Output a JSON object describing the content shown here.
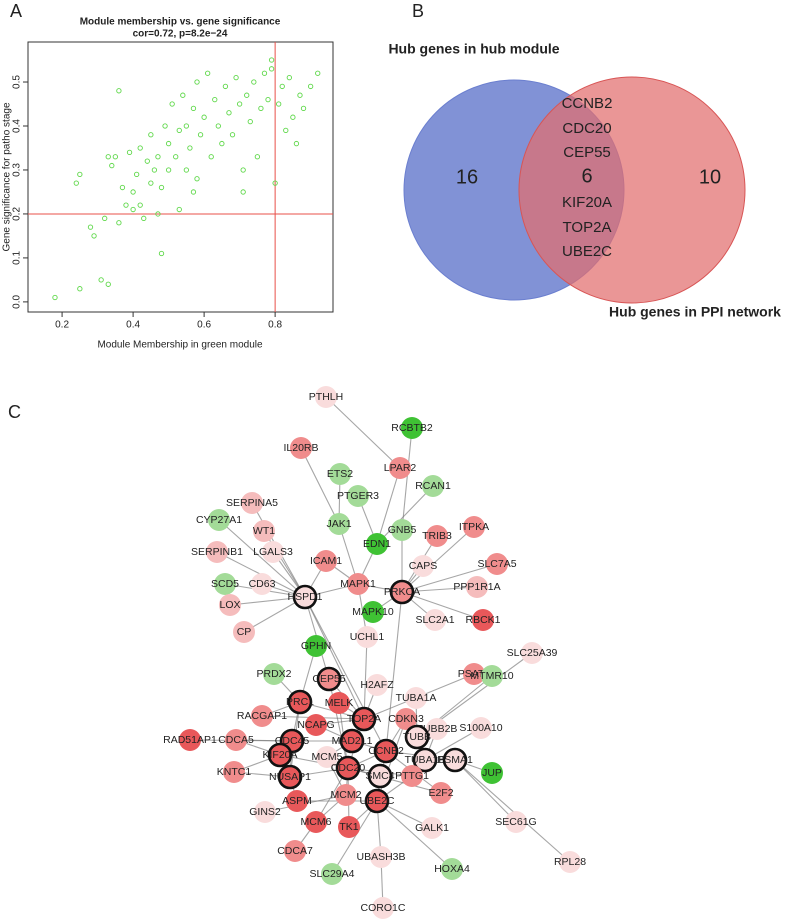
{
  "panel_labels": [
    "A",
    "B",
    "C"
  ],
  "chart_data": {
    "type": "scatter",
    "title": "Module membership vs. gene significance",
    "subtitle": "cor=0.72, p=8.2e−24",
    "x_label": "Module Membership in green module",
    "y_label": "Gene significance for patho stage",
    "color": "#5fd84a",
    "x": [
      0.18,
      0.25,
      0.24,
      0.25,
      0.31,
      0.33,
      0.28,
      0.29,
      0.32,
      0.33,
      0.34,
      0.36,
      0.35,
      0.36,
      0.37,
      0.38,
      0.39,
      0.4,
      0.4,
      0.41,
      0.42,
      0.42,
      0.43,
      0.44,
      0.45,
      0.45,
      0.46,
      0.47,
      0.48,
      0.48,
      0.49,
      0.5,
      0.5,
      0.51,
      0.52,
      0.53,
      0.53,
      0.54,
      0.55,
      0.55,
      0.56,
      0.57,
      0.58,
      0.58,
      0.59,
      0.6,
      0.61,
      0.62,
      0.63,
      0.64,
      0.65,
      0.66,
      0.67,
      0.68,
      0.69,
      0.7,
      0.71,
      0.72,
      0.73,
      0.74,
      0.75,
      0.76,
      0.77,
      0.78,
      0.79,
      0.8,
      0.81,
      0.82,
      0.83,
      0.84,
      0.85,
      0.86,
      0.87,
      0.88,
      0.9,
      0.92,
      0.79,
      0.71,
      0.57,
      0.47
    ],
    "y": [
      0.01,
      0.03,
      0.27,
      0.29,
      0.05,
      0.04,
      0.17,
      0.15,
      0.19,
      0.33,
      0.31,
      0.48,
      0.33,
      0.18,
      0.26,
      0.22,
      0.34,
      0.25,
      0.21,
      0.29,
      0.35,
      0.22,
      0.19,
      0.32,
      0.38,
      0.27,
      0.3,
      0.33,
      0.11,
      0.26,
      0.4,
      0.36,
      0.3,
      0.45,
      0.33,
      0.21,
      0.39,
      0.47,
      0.3,
      0.4,
      0.35,
      0.44,
      0.28,
      0.5,
      0.38,
      0.42,
      0.52,
      0.33,
      0.46,
      0.4,
      0.36,
      0.49,
      0.43,
      0.38,
      0.51,
      0.45,
      0.3,
      0.47,
      0.41,
      0.5,
      0.33,
      0.44,
      0.52,
      0.46,
      0.53,
      0.27,
      0.45,
      0.49,
      0.39,
      0.51,
      0.42,
      0.36,
      0.47,
      0.44,
      0.49,
      0.52,
      0.55,
      0.25,
      0.25,
      0.2
    ],
    "xlim": [
      0.104,
      0.963
    ],
    "ylim": [
      -0.023,
      0.591
    ],
    "xticks": [
      0.2,
      0.4,
      0.6,
      0.8
    ],
    "yticks": [
      {
        "value": 0,
        "label": "0.0"
      },
      0.1,
      0.2,
      0.3,
      0.4,
      0.5
    ],
    "threshold_lines": {
      "x": 0.8,
      "y": 0.2,
      "color": "#e8504a"
    }
  },
  "venn": {
    "sets": [
      {
        "name": "Hub genes in hub module",
        "color": "#6b7fcf",
        "only": 16
      },
      {
        "name": "Hub genes in PPI network",
        "color": "#e26d6d",
        "only": 10
      }
    ],
    "intersection": {
      "count": 6,
      "genes": [
        "CCNB2",
        "CDC20",
        "CEP55",
        "KIF20A",
        "TOP2A",
        "UBE2C"
      ]
    }
  },
  "network": {
    "palette": {
      "red": "#e8585a",
      "pink": "#f08c8c",
      "lightpink": "#f5bcbc",
      "light": "#f9dcdc",
      "green": "#3fc234",
      "lightgreen": "#a3db98"
    },
    "nodes": [
      {
        "label": "PTHLH",
        "fill": "light"
      },
      {
        "label": "RCBTB2",
        "fill": "green"
      },
      {
        "label": "IL20RB",
        "fill": "pink"
      },
      {
        "label": "ETS2",
        "fill": "lightgreen"
      },
      {
        "label": "LPAR2",
        "fill": "pink"
      },
      {
        "label": "PTGER3",
        "fill": "lightgreen"
      },
      {
        "label": "RCAN1",
        "fill": "lightgreen"
      },
      {
        "label": "SERPINA5",
        "fill": "lightpink"
      },
      {
        "label": "CYP27A1",
        "fill": "lightgreen"
      },
      {
        "label": "WT1",
        "fill": "lightpink"
      },
      {
        "label": "JAK1",
        "fill": "lightgreen"
      },
      {
        "label": "GNB5",
        "fill": "lightgreen"
      },
      {
        "label": "TRIB3",
        "fill": "pink"
      },
      {
        "label": "ITPKA",
        "fill": "pink"
      },
      {
        "label": "EDN1",
        "fill": "green"
      },
      {
        "label": "SERPINB1",
        "fill": "lightpink"
      },
      {
        "label": "LGALS3",
        "fill": "light"
      },
      {
        "label": "ICAM1",
        "fill": "pink"
      },
      {
        "label": "SLC7A5",
        "fill": "pink"
      },
      {
        "label": "CAPS",
        "fill": "light"
      },
      {
        "label": "SCD5",
        "fill": "lightgreen"
      },
      {
        "label": "CD63",
        "fill": "light"
      },
      {
        "label": "MAPK1",
        "fill": "pink"
      },
      {
        "label": "PRKCA",
        "fill": "pink",
        "hub": true
      },
      {
        "label": "PPP1R1A",
        "fill": "lightpink"
      },
      {
        "label": "LOX",
        "fill": "lightpink"
      },
      {
        "label": "HSPD1",
        "fill": "light",
        "hub": true
      },
      {
        "label": "MAPK10",
        "fill": "green"
      },
      {
        "label": "SLC2A1",
        "fill": "light"
      },
      {
        "label": "RBCK1",
        "fill": "red"
      },
      {
        "label": "CP",
        "fill": "lightpink"
      },
      {
        "label": "UCHL1",
        "fill": "light"
      },
      {
        "label": "GPHN",
        "fill": "green"
      },
      {
        "label": "SLC25A39",
        "fill": "light"
      },
      {
        "label": "PRDX2",
        "fill": "lightgreen"
      },
      {
        "label": "PSAT1",
        "fill": "pink"
      },
      {
        "label": "MTMR10",
        "fill": "lightgreen"
      },
      {
        "label": "CEP55",
        "fill": "pink",
        "hub": true
      },
      {
        "label": "H2AFZ",
        "fill": "light"
      },
      {
        "label": "TUBA1A",
        "fill": "light"
      },
      {
        "label": "PRC1",
        "fill": "red",
        "hub": true
      },
      {
        "label": "MELK",
        "fill": "red"
      },
      {
        "label": "RACGAP1",
        "fill": "pink"
      },
      {
        "label": "TOP2A",
        "fill": "red",
        "hub": true
      },
      {
        "label": "CDKN3",
        "fill": "pink"
      },
      {
        "label": "NCAPG",
        "fill": "red"
      },
      {
        "label": "TUBB2B",
        "fill": "light"
      },
      {
        "label": "TUBB",
        "fill": "light",
        "hub": true
      },
      {
        "label": "S100A10",
        "fill": "light"
      },
      {
        "label": "RAD51AP1",
        "fill": "red"
      },
      {
        "label": "CDCA5",
        "fill": "pink"
      },
      {
        "label": "CDC45",
        "fill": "red",
        "hub": true
      },
      {
        "label": "MAD2L1",
        "fill": "red",
        "hub": true
      },
      {
        "label": "CCNB2",
        "fill": "red",
        "hub": true
      },
      {
        "label": "KIF20A",
        "fill": "red",
        "hub": true
      },
      {
        "label": "MCM5",
        "fill": "light"
      },
      {
        "label": "TUBA1B",
        "fill": "light",
        "hub": true
      },
      {
        "label": "PSMA1",
        "fill": "light",
        "hub": true
      },
      {
        "label": "JUP",
        "fill": "green"
      },
      {
        "label": "KNTC1",
        "fill": "pink"
      },
      {
        "label": "NUSAP1",
        "fill": "red",
        "hub": true
      },
      {
        "label": "CDC20",
        "fill": "red",
        "hub": true
      },
      {
        "label": "SMC4",
        "fill": "light",
        "hub": true
      },
      {
        "label": "PTTG1",
        "fill": "pink"
      },
      {
        "label": "E2F2",
        "fill": "pink"
      },
      {
        "label": "MCM2",
        "fill": "pink"
      },
      {
        "label": "ASPM",
        "fill": "red"
      },
      {
        "label": "UBE2C",
        "fill": "red",
        "hub": true
      },
      {
        "label": "GINS2",
        "fill": "light"
      },
      {
        "label": "MCM6",
        "fill": "red"
      },
      {
        "label": "TK1",
        "fill": "red"
      },
      {
        "label": "GALK1",
        "fill": "light"
      },
      {
        "label": "SEC61G",
        "fill": "light"
      },
      {
        "label": "CDCA7",
        "fill": "pink"
      },
      {
        "label": "UBASH3B",
        "fill": "light"
      },
      {
        "label": "SLC29A4",
        "fill": "lightgreen"
      },
      {
        "label": "HOXA4",
        "fill": "lightgreen"
      },
      {
        "label": "RPL28",
        "fill": "light"
      },
      {
        "label": "CORO1C",
        "fill": "light"
      }
    ],
    "edges": [
      [
        0,
        4
      ],
      [
        1,
        11
      ],
      [
        2,
        10
      ],
      [
        3,
        10
      ],
      [
        4,
        14
      ],
      [
        5,
        14
      ],
      [
        6,
        14
      ],
      [
        7,
        26
      ],
      [
        8,
        26
      ],
      [
        9,
        26
      ],
      [
        10,
        22
      ],
      [
        11,
        23
      ],
      [
        12,
        23
      ],
      [
        13,
        23
      ],
      [
        14,
        22
      ],
      [
        15,
        26
      ],
      [
        16,
        26
      ],
      [
        17,
        26
      ],
      [
        18,
        23
      ],
      [
        19,
        23
      ],
      [
        20,
        26
      ],
      [
        21,
        26
      ],
      [
        22,
        23
      ],
      [
        22,
        26
      ],
      [
        24,
        23
      ],
      [
        25,
        26
      ],
      [
        26,
        30
      ],
      [
        27,
        23
      ],
      [
        28,
        23
      ],
      [
        29,
        23
      ],
      [
        22,
        31
      ],
      [
        26,
        37
      ],
      [
        32,
        40
      ],
      [
        34,
        40
      ],
      [
        23,
        53
      ],
      [
        26,
        53
      ],
      [
        35,
        43
      ],
      [
        36,
        47
      ],
      [
        33,
        47
      ],
      [
        37,
        43
      ],
      [
        38,
        43
      ],
      [
        39,
        47
      ],
      [
        40,
        43
      ],
      [
        41,
        43
      ],
      [
        42,
        40
      ],
      [
        44,
        53
      ],
      [
        45,
        52
      ],
      [
        46,
        56
      ],
      [
        48,
        56
      ],
      [
        49,
        51
      ],
      [
        50,
        51
      ],
      [
        51,
        52
      ],
      [
        52,
        53
      ],
      [
        53,
        61
      ],
      [
        54,
        60
      ],
      [
        55,
        65
      ],
      [
        56,
        47
      ],
      [
        57,
        53
      ],
      [
        58,
        57
      ],
      [
        59,
        54
      ],
      [
        60,
        61
      ],
      [
        61,
        62
      ],
      [
        62,
        67
      ],
      [
        63,
        61
      ],
      [
        64,
        53
      ],
      [
        65,
        61
      ],
      [
        66,
        60
      ],
      [
        67,
        53
      ],
      [
        68,
        65
      ],
      [
        69,
        65
      ],
      [
        70,
        61
      ],
      [
        71,
        67
      ],
      [
        72,
        57
      ],
      [
        73,
        69
      ],
      [
        74,
        67
      ],
      [
        75,
        67
      ],
      [
        76,
        67
      ],
      [
        77,
        57
      ],
      [
        78,
        74
      ],
      [
        40,
        51
      ],
      [
        40,
        60
      ],
      [
        43,
        61
      ],
      [
        43,
        52
      ],
      [
        51,
        60
      ],
      [
        54,
        61
      ],
      [
        37,
        61
      ],
      [
        41,
        61
      ],
      [
        45,
        43
      ],
      [
        55,
        52
      ],
      [
        66,
        67
      ],
      [
        70,
        67
      ],
      [
        44,
        67
      ],
      [
        63,
        67
      ],
      [
        59,
        60
      ],
      [
        42,
        43
      ],
      [
        50,
        54
      ],
      [
        47,
        56
      ],
      [
        26,
        43
      ],
      [
        31,
        43
      ],
      [
        69,
        61
      ],
      [
        64,
        61
      ],
      [
        17,
        22
      ]
    ]
  }
}
